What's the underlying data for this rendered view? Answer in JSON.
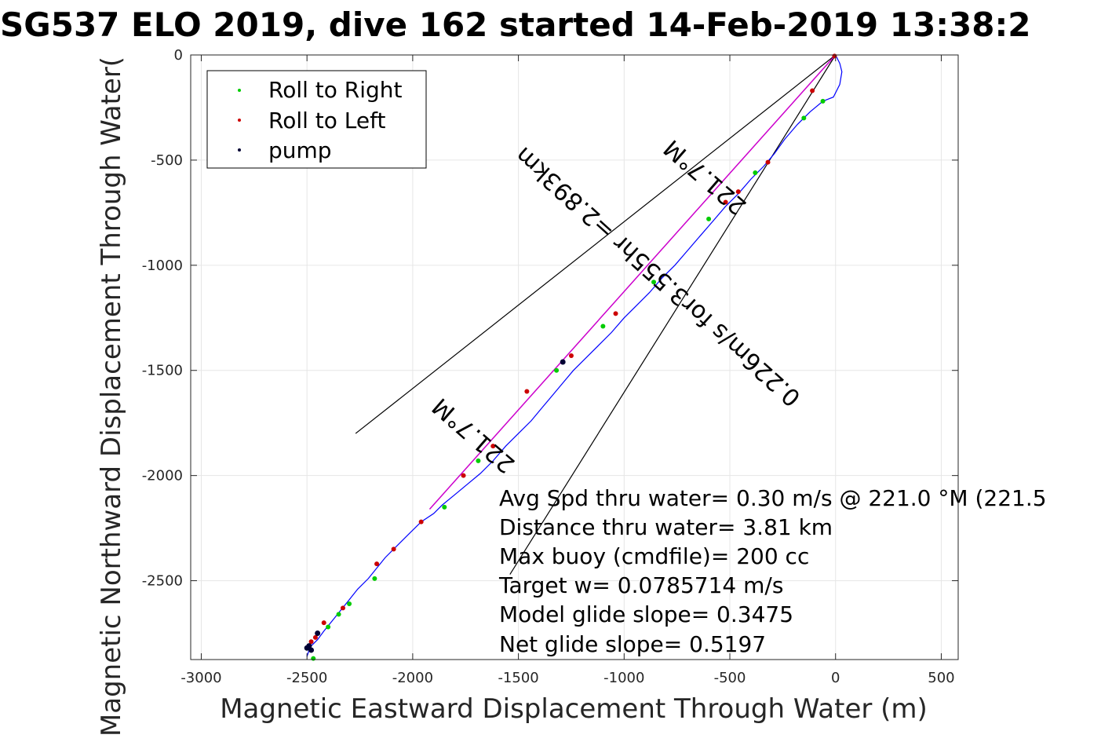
{
  "chart_data": {
    "type": "line",
    "title": "SG537 ELO 2019, dive 162 started 14-Feb-2019 13:38:2",
    "xlabel": "Magnetic Eastward Displacement Through Water (m)",
    "ylabel": "Magnetic Northward Displacement Through Water(",
    "xlim": [
      -3050,
      580
    ],
    "ylim": [
      -2875,
      0
    ],
    "xticks": [
      -3000,
      -2500,
      -2000,
      -1500,
      -1000,
      -500,
      0,
      500
    ],
    "yticks": [
      0,
      -500,
      -1000,
      -1500,
      -2000,
      -2500
    ],
    "xtick_labels": [
      "-3000",
      "-2500",
      "-2000",
      "-1500",
      "-1000",
      "-500",
      "0",
      "500"
    ],
    "ytick_labels": [
      "0",
      "-500",
      "-1000",
      "-1500",
      "-2000",
      "-2500"
    ],
    "grid": true,
    "legend_position": "top-left",
    "legend": [
      "Roll to Right",
      "Roll to Left",
      "pump"
    ],
    "colors": {
      "track": "#0000ff",
      "roll_right": "#00cc00",
      "roll_left": "#cc0000",
      "pump": "#000033",
      "heading_line": "#cc00cc",
      "outline": "#000000"
    },
    "track": {
      "x": [
        0,
        20,
        30,
        20,
        -10,
        -60,
        -120,
        -180,
        -240,
        -290,
        -340,
        -400,
        -460,
        -520,
        -580,
        -640,
        -700,
        -760,
        -820,
        -880,
        -940,
        -1000,
        -1060,
        -1120,
        -1180,
        -1240,
        -1290,
        -1340,
        -1390,
        -1440,
        -1500,
        -1560,
        -1620,
        -1680,
        -1740,
        -1800,
        -1860,
        -1900,
        -1960,
        -2020,
        -2080,
        -2130,
        -2170,
        -2210,
        -2260,
        -2300,
        -2340,
        -2380,
        -2420,
        -2450,
        -2480,
        -2490,
        -2500
      ],
      "y": [
        0,
        -40,
        -80,
        -140,
        -200,
        -220,
        -270,
        -330,
        -400,
        -470,
        -530,
        -590,
        -660,
        -720,
        -790,
        -860,
        -930,
        -1000,
        -1060,
        -1130,
        -1190,
        -1250,
        -1320,
        -1380,
        -1440,
        -1500,
        -1560,
        -1620,
        -1680,
        -1740,
        -1800,
        -1860,
        -1930,
        -1990,
        -2040,
        -2090,
        -2140,
        -2180,
        -2220,
        -2280,
        -2340,
        -2390,
        -2440,
        -2490,
        -2540,
        -2590,
        -2640,
        -2690,
        -2740,
        -2780,
        -2810,
        -2830,
        -2860
      ]
    },
    "roll_right_points": {
      "x": [
        -60,
        -150,
        -380,
        -600,
        -860,
        -1100,
        -1320,
        -1690,
        -1850,
        -2180,
        -2300,
        -2350,
        -2400,
        -2470
      ],
      "y": [
        -220,
        -300,
        -560,
        -780,
        -1080,
        -1290,
        -1500,
        -1930,
        -2150,
        -2490,
        -2610,
        -2660,
        -2720,
        -2870
      ]
    },
    "roll_left_points": {
      "x": [
        -5,
        -110,
        -320,
        -460,
        -520,
        -1040,
        -1250,
        -1460,
        -1620,
        -1760,
        -1960,
        -2090,
        -2170,
        -2330,
        -2420,
        -2460,
        -2480,
        -2500
      ],
      "y": [
        -5,
        -170,
        -510,
        -650,
        -700,
        -1230,
        -1430,
        -1600,
        -1860,
        -2000,
        -2220,
        -2350,
        -2420,
        -2630,
        -2700,
        -2770,
        -2790,
        -2820
      ]
    },
    "pump_points": {
      "x": [
        -1290,
        -2450,
        -2490,
        -2500,
        -2480
      ],
      "y": [
        -1460,
        -2750,
        -2810,
        -2820,
        -2830
      ]
    },
    "heading_line": {
      "x": [
        0,
        -1920
      ],
      "y": [
        0,
        -2160
      ]
    },
    "cone_lines": [
      {
        "x": [
          0,
          -2270
        ],
        "y": [
          0,
          -1800
        ]
      },
      {
        "x": [
          0,
          -1540
        ],
        "y": [
          0,
          -2470
        ]
      }
    ],
    "rotated_labels": [
      "221.7°M",
      "0.226m/s for3.555hr =2.893km",
      "221.7°M"
    ],
    "annotations": [
      "Avg Spd thru water=  0.30 m/s @ 221.0 °M (221.5",
      "Distance thru water=  3.81 km",
      "Max buoy (cmdfile)= 200 cc",
      "Target w= 0.0785714 m/s",
      "Model glide slope= 0.3475",
      "Net glide slope= 0.5197"
    ]
  }
}
